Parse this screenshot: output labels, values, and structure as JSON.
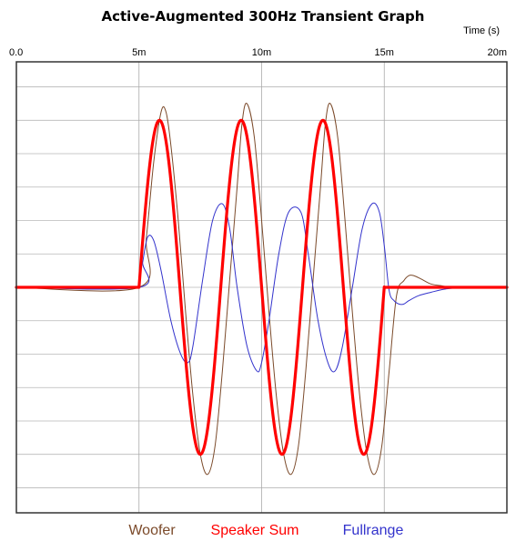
{
  "chart_data": {
    "type": "line",
    "title": "Active-Augmented 300Hz Transient Graph",
    "xlabel": "Time   (s)",
    "ylabel": "",
    "x_unit": "ms",
    "xlim": [
      0,
      20
    ],
    "ylim": [
      -1.35,
      1.35
    ],
    "x_ticks": [
      0,
      5,
      10,
      15,
      20
    ],
    "x_tick_labels": [
      "0.0",
      "5m",
      "10m",
      "15m",
      "20m"
    ],
    "y_grid_step": 0.2,
    "grid": true,
    "legend": "bottom",
    "series": [
      {
        "name": "Woofer",
        "color": "#7b4a2a",
        "width": 1,
        "x": [
          0,
          5,
          5.3,
          5.6,
          5.9,
          6.1,
          6.3,
          6.6,
          6.9,
          7.2,
          7.5,
          7.8,
          8.1,
          8.4,
          8.7,
          9.0,
          9.2,
          9.4,
          9.7,
          10.0,
          10.3,
          10.6,
          10.9,
          11.2,
          11.5,
          11.8,
          12.1,
          12.4,
          12.6,
          12.8,
          13.1,
          13.4,
          13.7,
          14.0,
          14.3,
          14.6,
          14.9,
          15.2,
          15.5,
          15.8,
          16.0,
          16.2,
          16.5,
          16.9,
          17.3,
          17.8,
          18.5,
          20
        ],
        "y": [
          0,
          0,
          0.3,
          0.75,
          1.05,
          1.05,
          0.85,
          0.4,
          -0.15,
          -0.65,
          -1.0,
          -1.12,
          -0.95,
          -0.5,
          0.05,
          0.6,
          0.98,
          1.1,
          0.9,
          0.4,
          -0.15,
          -0.65,
          -1.0,
          -1.12,
          -0.95,
          -0.5,
          0.05,
          0.6,
          0.98,
          1.1,
          0.9,
          0.4,
          -0.15,
          -0.65,
          -1.0,
          -1.12,
          -0.95,
          -0.5,
          -0.05,
          0.04,
          0.07,
          0.07,
          0.05,
          0.02,
          0.01,
          0.0,
          0.0,
          0
        ],
        "smooth": true
      },
      {
        "name": "Speaker Sum",
        "color": "#ff0000",
        "width": 3.2,
        "x": [
          0,
          5,
          5.833,
          7.5,
          9.167,
          10.833,
          12.5,
          14.167,
          15.0,
          20
        ],
        "y": [
          0,
          0,
          1.0,
          -1.0,
          1.0,
          -1.0,
          1.0,
          -1.0,
          0,
          0
        ],
        "sine": {
          "start": 5.0,
          "end": 15.0,
          "period": 3.333,
          "amplitude": 1.0
        }
      },
      {
        "name": "Fullrange",
        "color": "#3333cc",
        "width": 1,
        "x": [
          0,
          5,
          5.15,
          5.35,
          5.6,
          5.9,
          6.3,
          6.7,
          7.0,
          7.2,
          7.6,
          8.0,
          8.4,
          8.7,
          9.0,
          9.4,
          9.8,
          10.0,
          10.3,
          10.7,
          11.1,
          11.6,
          11.9,
          12.3,
          12.7,
          13.0,
          13.3,
          13.7,
          14.1,
          14.5,
          14.8,
          15.0,
          15.2,
          15.4,
          15.6,
          15.8,
          16.0,
          16.4,
          16.9,
          17.5,
          18.3,
          20
        ],
        "y": [
          0,
          0,
          0.15,
          0.3,
          0.28,
          0.1,
          -0.2,
          -0.4,
          -0.45,
          -0.35,
          0.05,
          0.4,
          0.5,
          0.35,
          0.0,
          -0.35,
          -0.5,
          -0.45,
          -0.2,
          0.2,
          0.45,
          0.45,
          0.2,
          -0.2,
          -0.45,
          -0.5,
          -0.35,
          0.0,
          0.35,
          0.5,
          0.45,
          0.25,
          -0.02,
          -0.08,
          -0.1,
          -0.1,
          -0.08,
          -0.05,
          -0.03,
          -0.01,
          0.0,
          0
        ],
        "smooth": true
      }
    ]
  }
}
